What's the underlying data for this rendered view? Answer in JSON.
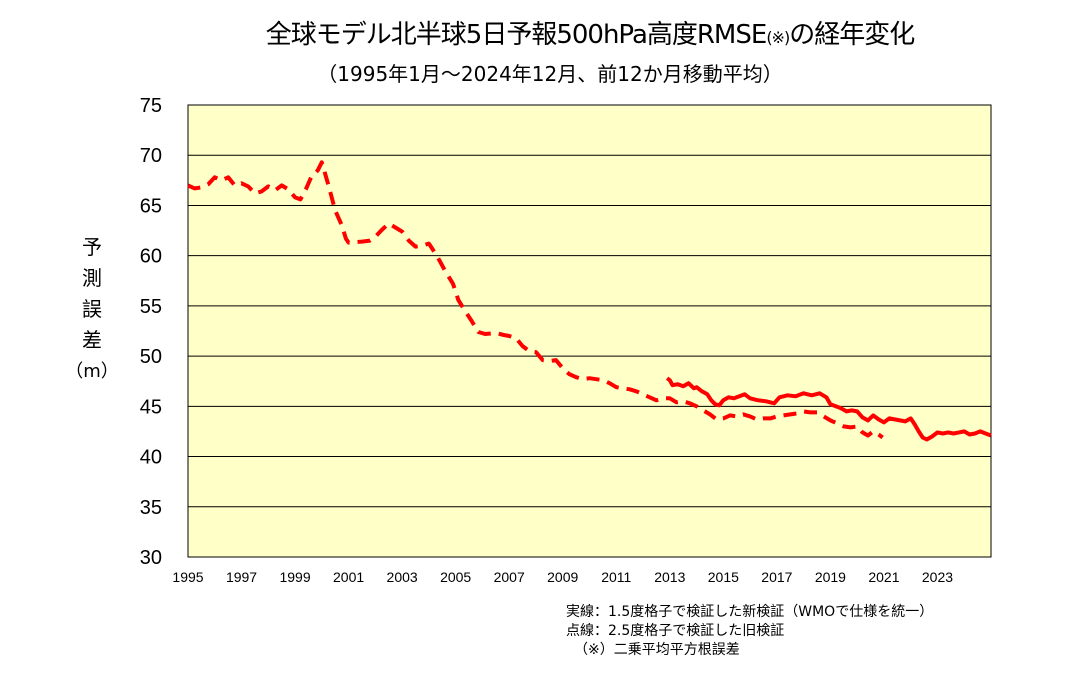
{
  "title": {
    "main": "全球モデル北半球5日予報500hPa高度RMSE",
    "mark": "(※)",
    "suffix": "の経年変化"
  },
  "subtitle": "（1995年1月～2024年12月、前12か月移動平均）",
  "ylabel": {
    "chars": [
      "予",
      "測",
      "誤",
      "差"
    ],
    "unit": "（m）"
  },
  "notes": [
    "実線：1.5度格子で検証した新検証（WMOで仕様を統一）",
    "点線：2.5度格子で検証した旧検証",
    "（※）二乗平均平方根誤差"
  ],
  "colors": {
    "plot_background": "#ffffc8",
    "series": "#ff0000",
    "grid": "#000000"
  },
  "chart_data": {
    "type": "line",
    "xlim": [
      1995,
      2025
    ],
    "ylim": [
      30,
      75
    ],
    "yticks": [
      30,
      35,
      40,
      45,
      50,
      55,
      60,
      65,
      70,
      75
    ],
    "xticks": [
      "1995",
      "1997",
      "1999",
      "2001",
      "2003",
      "2005",
      "2007",
      "2009",
      "2011",
      "2013",
      "2015",
      "2017",
      "2019",
      "2021",
      "2023"
    ],
    "grid": "horizontal",
    "series": [
      {
        "style": "dashed",
        "points": [
          [
            1995.0,
            67.0
          ],
          [
            1995.25,
            66.7
          ],
          [
            1995.5,
            66.8
          ],
          [
            1995.75,
            67.1
          ],
          [
            1996.0,
            67.8
          ],
          [
            1996.25,
            67.5
          ],
          [
            1996.5,
            67.8
          ],
          [
            1996.75,
            67.0
          ],
          [
            1997.0,
            67.2
          ],
          [
            1997.25,
            66.9
          ],
          [
            1997.5,
            66.2
          ],
          [
            1997.75,
            66.4
          ],
          [
            1998.0,
            66.9
          ],
          [
            1998.25,
            66.5
          ],
          [
            1998.5,
            67.0
          ],
          [
            1998.75,
            66.6
          ],
          [
            1999.0,
            65.8
          ],
          [
            1999.2,
            65.6
          ],
          [
            1999.4,
            66.6
          ],
          [
            1999.6,
            67.8
          ],
          [
            1999.85,
            68.5
          ],
          [
            2000.0,
            69.3
          ],
          [
            2000.25,
            67.0
          ],
          [
            2000.5,
            64.5
          ],
          [
            2000.75,
            63.0
          ],
          [
            2000.9,
            61.7
          ],
          [
            2001.0,
            61.3
          ],
          [
            2001.5,
            61.4
          ],
          [
            2001.8,
            61.5
          ],
          [
            2002.0,
            61.9
          ],
          [
            2002.25,
            62.6
          ],
          [
            2002.5,
            63.2
          ],
          [
            2002.75,
            62.8
          ],
          [
            2003.0,
            62.4
          ],
          [
            2003.25,
            61.5
          ],
          [
            2003.5,
            60.9
          ],
          [
            2003.75,
            61.0
          ],
          [
            2004.0,
            61.2
          ],
          [
            2004.3,
            60.0
          ],
          [
            2004.6,
            58.5
          ],
          [
            2004.9,
            57.2
          ],
          [
            2005.1,
            55.6
          ],
          [
            2005.35,
            54.5
          ],
          [
            2005.6,
            53.5
          ],
          [
            2005.85,
            52.4
          ],
          [
            2006.1,
            52.2
          ],
          [
            2006.5,
            52.3
          ],
          [
            2006.8,
            52.1
          ],
          [
            2007.0,
            52.0
          ],
          [
            2007.25,
            51.8
          ],
          [
            2007.5,
            51.0
          ],
          [
            2007.75,
            50.5
          ],
          [
            2008.0,
            50.4
          ],
          [
            2008.25,
            49.6
          ],
          [
            2008.5,
            49.5
          ],
          [
            2008.75,
            49.6
          ],
          [
            2009.0,
            48.8
          ],
          [
            2009.25,
            48.2
          ],
          [
            2009.5,
            47.9
          ],
          [
            2009.75,
            47.7
          ],
          [
            2010.0,
            47.8
          ],
          [
            2010.5,
            47.6
          ],
          [
            2010.75,
            47.3
          ],
          [
            2011.0,
            46.9
          ],
          [
            2011.5,
            46.7
          ],
          [
            2011.75,
            46.5
          ],
          [
            2012.0,
            46.2
          ],
          [
            2012.25,
            45.9
          ],
          [
            2012.5,
            45.6
          ],
          [
            2012.75,
            45.8
          ],
          [
            2013.0,
            45.8
          ],
          [
            2013.25,
            45.4
          ],
          [
            2013.5,
            45.5
          ],
          [
            2013.75,
            45.3
          ],
          [
            2014.0,
            45.0
          ],
          [
            2014.25,
            44.6
          ],
          [
            2014.5,
            44.2
          ],
          [
            2014.75,
            43.7
          ],
          [
            2015.0,
            43.8
          ],
          [
            2015.25,
            44.1
          ],
          [
            2015.5,
            44.0
          ],
          [
            2015.75,
            44.2
          ],
          [
            2016.0,
            44.0
          ],
          [
            2016.25,
            43.7
          ],
          [
            2016.5,
            43.8
          ],
          [
            2016.75,
            43.8
          ],
          [
            2017.0,
            44.0
          ],
          [
            2017.25,
            44.1
          ],
          [
            2017.5,
            44.2
          ],
          [
            2017.75,
            44.3
          ],
          [
            2018.0,
            44.5
          ],
          [
            2018.25,
            44.4
          ],
          [
            2018.5,
            44.4
          ],
          [
            2018.75,
            44.0
          ],
          [
            2019.0,
            43.6
          ],
          [
            2019.25,
            43.3
          ],
          [
            2019.5,
            43.0
          ],
          [
            2019.75,
            42.9
          ],
          [
            2020.0,
            43.0
          ],
          [
            2020.2,
            42.4
          ],
          [
            2020.4,
            42.1
          ],
          [
            2020.6,
            42.5
          ],
          [
            2020.8,
            42.2
          ],
          [
            2020.95,
            41.9
          ]
        ]
      },
      {
        "style": "solid",
        "points": [
          [
            2012.9,
            47.8
          ],
          [
            2013.0,
            47.6
          ],
          [
            2013.1,
            47.1
          ],
          [
            2013.3,
            47.2
          ],
          [
            2013.5,
            47.0
          ],
          [
            2013.7,
            47.3
          ],
          [
            2013.9,
            46.8
          ],
          [
            2014.0,
            46.9
          ],
          [
            2014.2,
            46.5
          ],
          [
            2014.4,
            46.2
          ],
          [
            2014.55,
            45.6
          ],
          [
            2014.7,
            45.2
          ],
          [
            2014.85,
            45.1
          ],
          [
            2015.0,
            45.6
          ],
          [
            2015.2,
            45.9
          ],
          [
            2015.4,
            45.8
          ],
          [
            2015.6,
            46.0
          ],
          [
            2015.8,
            46.2
          ],
          [
            2016.0,
            45.8
          ],
          [
            2016.3,
            45.6
          ],
          [
            2016.6,
            45.5
          ],
          [
            2016.9,
            45.3
          ],
          [
            2017.1,
            45.9
          ],
          [
            2017.4,
            46.1
          ],
          [
            2017.7,
            46.0
          ],
          [
            2018.0,
            46.3
          ],
          [
            2018.3,
            46.1
          ],
          [
            2018.6,
            46.3
          ],
          [
            2018.85,
            45.9
          ],
          [
            2019.0,
            45.2
          ],
          [
            2019.2,
            45.0
          ],
          [
            2019.4,
            44.8
          ],
          [
            2019.6,
            44.5
          ],
          [
            2019.8,
            44.6
          ],
          [
            2020.0,
            44.5
          ],
          [
            2020.2,
            43.9
          ],
          [
            2020.4,
            43.6
          ],
          [
            2020.6,
            44.1
          ],
          [
            2020.8,
            43.7
          ],
          [
            2021.0,
            43.4
          ],
          [
            2021.2,
            43.8
          ],
          [
            2021.4,
            43.7
          ],
          [
            2021.6,
            43.6
          ],
          [
            2021.8,
            43.5
          ],
          [
            2022.0,
            43.8
          ],
          [
            2022.15,
            43.2
          ],
          [
            2022.3,
            42.5
          ],
          [
            2022.45,
            41.9
          ],
          [
            2022.6,
            41.7
          ],
          [
            2022.8,
            42.0
          ],
          [
            2023.0,
            42.4
          ],
          [
            2023.2,
            42.3
          ],
          [
            2023.4,
            42.4
          ],
          [
            2023.6,
            42.3
          ],
          [
            2023.8,
            42.4
          ],
          [
            2024.0,
            42.5
          ],
          [
            2024.2,
            42.2
          ],
          [
            2024.4,
            42.3
          ],
          [
            2024.6,
            42.5
          ],
          [
            2024.8,
            42.3
          ],
          [
            2025.0,
            42.1
          ]
        ]
      }
    ]
  }
}
